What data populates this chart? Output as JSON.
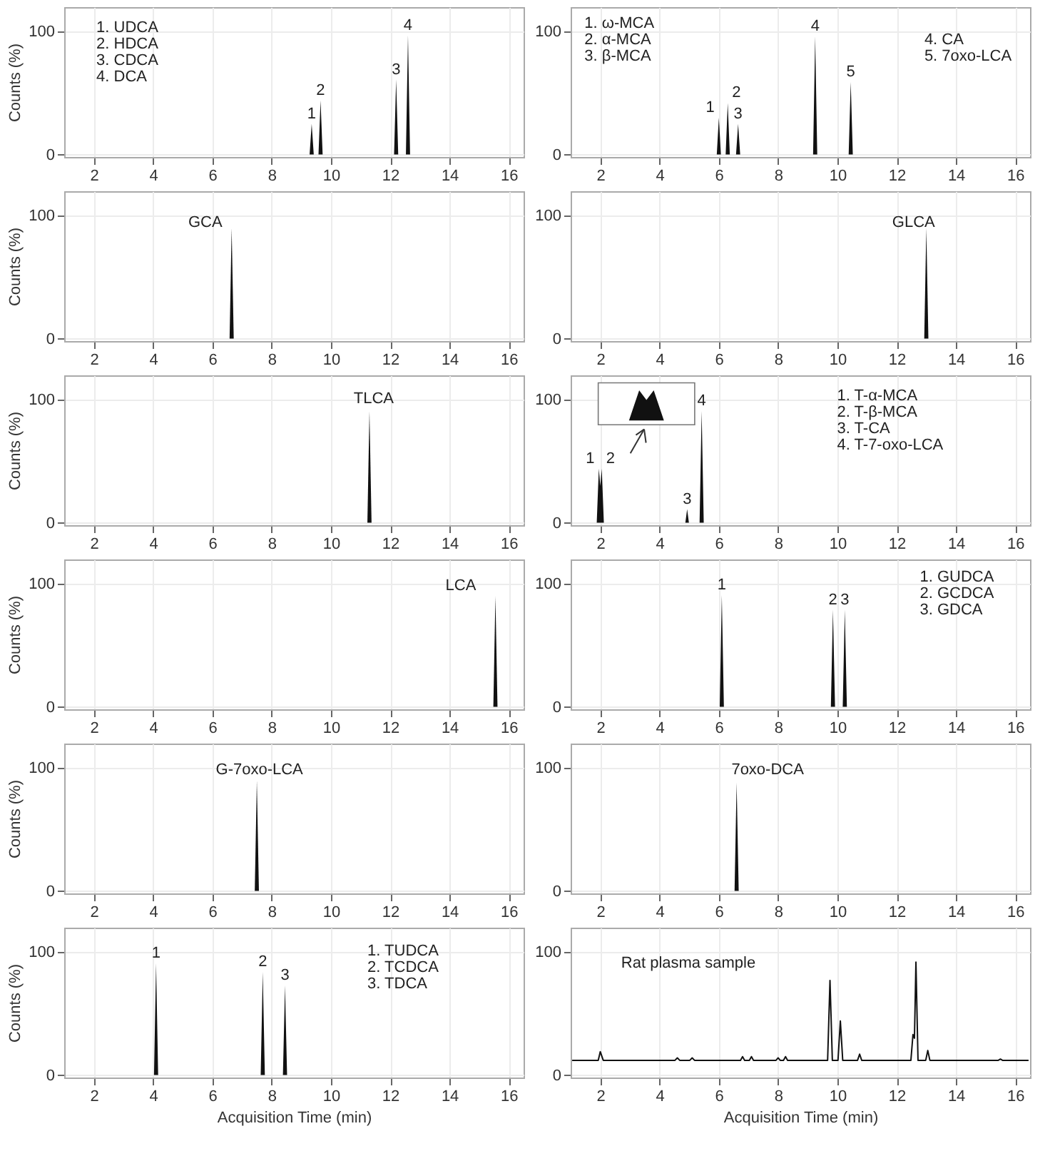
{
  "chart_data": [
    {
      "type": "area",
      "color": "#111111",
      "x": [
        9.28,
        9.35,
        9.42,
        9.58,
        9.65,
        9.72,
        12.13,
        12.2,
        12.27,
        12.53,
        12.6,
        12.67
      ],
      "values": [
        0,
        25,
        0,
        0,
        44,
        0,
        0,
        61,
        0,
        0,
        97,
        0
      ],
      "xlim": [
        1.0,
        16.5
      ],
      "ylim": [
        -2,
        120
      ],
      "xticks": [
        2,
        4,
        6,
        8,
        10,
        12,
        14,
        16
      ],
      "yticks": [
        0,
        100
      ],
      "grid": true,
      "ylabel": "Counts (%)",
      "annotations": [
        {
          "text": "1",
          "x": 9.35,
          "y": 25
        },
        {
          "text": "2",
          "x": 9.65,
          "y": 44
        },
        {
          "text": "3",
          "x": 12.2,
          "y": 61
        },
        {
          "text": "4",
          "x": 12.6,
          "y": 97
        },
        "1. UDCA",
        "2. HDCA",
        "3. CDCA",
        "4. DCA"
      ]
    },
    {
      "type": "area",
      "color": "#111111",
      "x": [
        5.93,
        6.0,
        6.07,
        6.23,
        6.3,
        6.37,
        6.58,
        6.65,
        6.72,
        9.18,
        9.25,
        9.32,
        10.38,
        10.45,
        10.52
      ],
      "values": [
        0,
        30,
        0,
        0,
        42,
        0,
        0,
        25,
        0,
        0,
        96,
        0,
        0,
        59,
        0
      ],
      "xlim": [
        1.0,
        16.5
      ],
      "ylim": [
        -2,
        120
      ],
      "xticks": [
        2,
        4,
        6,
        8,
        10,
        12,
        14,
        16
      ],
      "yticks": [
        0,
        100
      ],
      "grid": true,
      "annotations": [
        {
          "text": "1",
          "x": 6.0,
          "y": 30
        },
        {
          "text": "2",
          "x": 6.3,
          "y": 42
        },
        {
          "text": "3",
          "x": 6.65,
          "y": 25
        },
        {
          "text": "4",
          "x": 9.25,
          "y": 96
        },
        {
          "text": "5",
          "x": 10.45,
          "y": 59
        },
        "1. ω-MCA",
        "2. α-MCA",
        "3. β-MCA",
        "4. CA",
        "5. 7oxo-LCA"
      ]
    },
    {
      "type": "area",
      "color": "#111111",
      "x": [
        6.58,
        6.65,
        6.72
      ],
      "values": [
        0,
        90,
        0
      ],
      "xlim": [
        1.0,
        16.5
      ],
      "ylim": [
        -2,
        120
      ],
      "xticks": [
        2,
        4,
        6,
        8,
        10,
        12,
        14,
        16
      ],
      "yticks": [
        0,
        100
      ],
      "grid": true,
      "ylabel": "Counts (%)",
      "annotations": [
        "GCA"
      ]
    },
    {
      "type": "area",
      "color": "#111111",
      "x": [
        12.93,
        13.0,
        13.07
      ],
      "values": [
        0,
        90,
        0
      ],
      "xlim": [
        1.0,
        16.5
      ],
      "ylim": [
        -2,
        120
      ],
      "xticks": [
        2,
        4,
        6,
        8,
        10,
        12,
        14,
        16
      ],
      "yticks": [
        0,
        100
      ],
      "grid": true,
      "annotations": [
        "GLCA"
      ]
    },
    {
      "type": "area",
      "color": "#111111",
      "x": [
        11.23,
        11.3,
        11.37
      ],
      "values": [
        0,
        91,
        0
      ],
      "xlim": [
        1.0,
        16.5
      ],
      "ylim": [
        -2,
        120
      ],
      "xticks": [
        2,
        4,
        6,
        8,
        10,
        12,
        14,
        16
      ],
      "yticks": [
        0,
        100
      ],
      "grid": true,
      "ylabel": "Counts (%)",
      "annotations": [
        "TLCA"
      ]
    },
    {
      "type": "area",
      "color": "#111111",
      "x": [
        1.88,
        1.95,
        2.0,
        2.05,
        2.12,
        4.87,
        4.93,
        4.99,
        5.35,
        5.42,
        5.49
      ],
      "values": [
        0,
        44,
        30,
        44,
        0,
        0,
        11,
        0,
        0,
        91,
        0
      ],
      "xlim": [
        1.0,
        16.5
      ],
      "ylim": [
        -2,
        120
      ],
      "xticks": [
        2,
        4,
        6,
        8,
        10,
        12,
        14,
        16
      ],
      "yticks": [
        0,
        100
      ],
      "grid": true,
      "annotations": [
        {
          "text": "1",
          "x": 1.95,
          "y": 44
        },
        {
          "text": "2",
          "x": 2.05,
          "y": 44
        },
        {
          "text": "3",
          "x": 4.93,
          "y": 11
        },
        {
          "text": "4",
          "x": 5.42,
          "y": 91
        },
        "1. T-α-MCA",
        "2. T-β-MCA",
        "3. T-CA",
        "4. T-7-oxo-LCA"
      ]
    },
    {
      "type": "area",
      "color": "#111111",
      "x": [
        15.48,
        15.55,
        15.62
      ],
      "values": [
        0,
        90,
        0
      ],
      "xlim": [
        1.0,
        16.5
      ],
      "ylim": [
        -2,
        120
      ],
      "xticks": [
        2,
        4,
        6,
        8,
        10,
        12,
        14,
        16
      ],
      "yticks": [
        0,
        100
      ],
      "grid": true,
      "ylabel": "Counts (%)",
      "annotations": [
        "LCA"
      ]
    },
    {
      "type": "area",
      "color": "#111111",
      "x": [
        6.03,
        6.1,
        6.17,
        9.78,
        9.85,
        9.92,
        10.18,
        10.25,
        10.32
      ],
      "values": [
        0,
        91,
        0,
        0,
        79,
        0,
        0,
        79,
        0
      ],
      "xlim": [
        1.0,
        16.5
      ],
      "ylim": [
        -2,
        120
      ],
      "xticks": [
        2,
        4,
        6,
        8,
        10,
        12,
        14,
        16
      ],
      "yticks": [
        0,
        100
      ],
      "grid": true,
      "annotations": [
        {
          "text": "1",
          "x": 6.1,
          "y": 91
        },
        {
          "text": "2",
          "x": 9.85,
          "y": 79
        },
        {
          "text": "3",
          "x": 10.25,
          "y": 79
        },
        "1. GUDCA",
        "2. GCDCA",
        "3. GDCA"
      ]
    },
    {
      "type": "area",
      "color": "#111111",
      "x": [
        7.43,
        7.5,
        7.57
      ],
      "values": [
        0,
        90,
        0
      ],
      "xlim": [
        1.0,
        16.5
      ],
      "ylim": [
        -2,
        120
      ],
      "xticks": [
        2,
        4,
        6,
        8,
        10,
        12,
        14,
        16
      ],
      "yticks": [
        0,
        100
      ],
      "grid": true,
      "ylabel": "Counts (%)",
      "annotations": [
        "G-7oxo-LCA"
      ]
    },
    {
      "type": "area",
      "color": "#111111",
      "x": [
        6.53,
        6.6,
        6.67
      ],
      "values": [
        0,
        88,
        0
      ],
      "xlim": [
        1.0,
        16.5
      ],
      "ylim": [
        -2,
        120
      ],
      "xticks": [
        2,
        4,
        6,
        8,
        10,
        12,
        14,
        16
      ],
      "yticks": [
        0,
        100
      ],
      "grid": true,
      "annotations": [
        "7oxo-DCA"
      ]
    },
    {
      "type": "area",
      "color": "#111111",
      "x": [
        4.03,
        4.1,
        4.17,
        7.63,
        7.7,
        7.77,
        8.38,
        8.45,
        8.52
      ],
      "values": [
        0,
        91,
        0,
        0,
        84,
        0,
        0,
        73,
        0
      ],
      "xlim": [
        1.0,
        16.5
      ],
      "ylim": [
        -2,
        120
      ],
      "xticks": [
        2,
        4,
        6,
        8,
        10,
        12,
        14,
        16
      ],
      "yticks": [
        0,
        100
      ],
      "grid": true,
      "ylabel": "Counts (%)",
      "xlabel": "Acquisition Time (min)",
      "annotations": [
        {
          "text": "1",
          "x": 4.1,
          "y": 91
        },
        {
          "text": "2",
          "x": 7.7,
          "y": 84
        },
        {
          "text": "3",
          "x": 8.45,
          "y": 73
        },
        "1. TUDCA",
        "2. TCDCA",
        "3. TDCA"
      ]
    },
    {
      "type": "line",
      "color": "#111111",
      "x": [
        1.05,
        1.93,
        2.0,
        2.1,
        4.52,
        4.6,
        4.68,
        5.02,
        5.1,
        5.18,
        6.73,
        6.8,
        6.87,
        7.03,
        7.1,
        7.17,
        7.93,
        8.0,
        8.07,
        8.18,
        8.25,
        8.32,
        9.67,
        9.75,
        9.83,
        10.02,
        10.1,
        10.18,
        10.68,
        10.75,
        10.82,
        12.48,
        12.55,
        12.6,
        12.65,
        12.72,
        12.98,
        13.05,
        13.12,
        15.43,
        15.5,
        15.57,
        16.45
      ],
      "values": [
        12,
        12,
        19,
        12,
        12,
        14,
        12,
        12,
        14,
        12,
        12,
        15,
        12,
        12,
        15,
        12,
        12,
        14,
        12,
        12,
        15,
        12,
        12,
        77,
        12,
        12,
        44,
        12,
        12,
        17,
        12,
        12,
        33,
        30,
        92,
        12,
        12,
        20,
        12,
        12,
        13,
        12,
        12
      ],
      "xlim": [
        1.0,
        16.5
      ],
      "ylim": [
        -2,
        120
      ],
      "xticks": [
        2,
        4,
        6,
        8,
        10,
        12,
        14,
        16
      ],
      "yticks": [
        0,
        100
      ],
      "grid": true,
      "xlabel": "Acquisition Time (min)",
      "annotations": [
        "Rat plasma sample"
      ]
    }
  ]
}
